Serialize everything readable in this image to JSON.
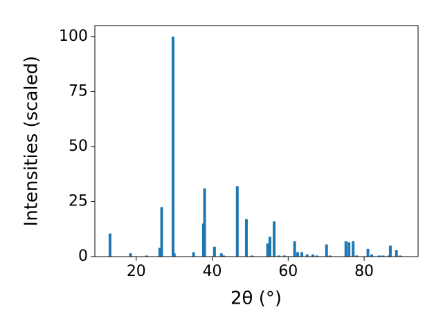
{
  "chart_data": {
    "type": "bar",
    "x_label": "2θ (°)",
    "y_label": "Intensities (scaled)",
    "color": "#1f77b4",
    "x": [
      13.1,
      18.5,
      22.7,
      26.2,
      26.7,
      29.7,
      30.0,
      35.1,
      37.7,
      38.0,
      40.6,
      42.4,
      43.0,
      46.6,
      49.0,
      50.5,
      54.6,
      55.2,
      56.3,
      57.5,
      59.0,
      61.7,
      62.5,
      63.6,
      65.0,
      66.5,
      67.5,
      70.1,
      71.0,
      75.2,
      76.0,
      77.1,
      78.0,
      81.0,
      82.0,
      84.0,
      85.0,
      86.5,
      86.9,
      88.5,
      89.5
    ],
    "values": [
      10.5,
      1.5,
      0.5,
      4,
      22.5,
      100,
      1.5,
      2,
      15,
      31,
      4.5,
      1.5,
      0.5,
      32,
      17,
      0.5,
      6,
      9,
      16,
      0.5,
      0.5,
      7,
      2,
      2,
      1,
      1,
      0.5,
      5.5,
      0.5,
      7,
      6.5,
      7,
      0.5,
      3.5,
      1,
      0.5,
      0.5,
      0.5,
      5,
      3,
      0.5
    ],
    "xlim": [
      9.1,
      94.2
    ],
    "ylim": [
      0,
      105
    ],
    "xticks": [
      20,
      40,
      60,
      80
    ],
    "yticks": [
      0,
      25,
      50,
      75,
      100
    ]
  }
}
